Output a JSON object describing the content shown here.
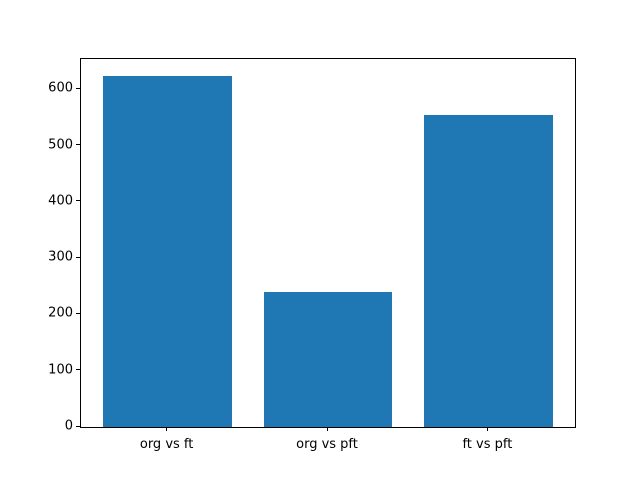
{
  "chart_data": {
    "type": "bar",
    "categories": [
      "org vs ft",
      "org vs pft",
      "ft vs pft"
    ],
    "values": [
      623,
      240,
      555
    ],
    "title": "",
    "xlabel": "",
    "ylabel": "",
    "ylim": [
      0,
      654
    ],
    "xlim": [
      -0.54,
      2.54
    ],
    "yticks": [
      0,
      100,
      200,
      300,
      400,
      500,
      600
    ],
    "bar_width": 0.8,
    "bar_color": "#1f77b4",
    "axes_color": "#000000",
    "background_color": "#ffffff",
    "grid": "off",
    "legend": "none"
  }
}
